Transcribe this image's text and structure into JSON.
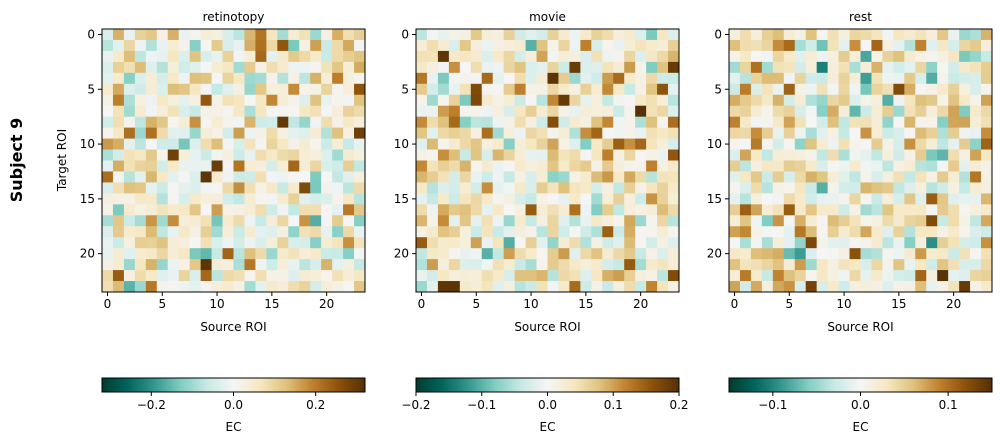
{
  "figure": {
    "row_label": "Subject 9",
    "ylabel": "Target ROI",
    "xlabel": "Source ROI",
    "colorbar_label": "EC"
  },
  "chart_data": {
    "type": "heatmap",
    "n_rois": 24,
    "axis_ticks": [
      0,
      5,
      10,
      15,
      20
    ],
    "colormap": "BrBG_r",
    "colormap_stops": [
      "#003c30",
      "#01665e",
      "#35978f",
      "#80cdc1",
      "#c7eae5",
      "#f5f5f5",
      "#f6e8c3",
      "#dfc27d",
      "#bf812d",
      "#8c510a",
      "#543005"
    ],
    "panels": [
      {
        "title": "retinotopy",
        "vlim": [
          -0.32,
          0.32
        ],
        "cbar_ticks": [
          -0.2,
          0.0,
          0.2
        ],
        "cbar_tick_labels": [
          "−0.2",
          "0.0",
          "0.2"
        ]
      },
      {
        "title": "movie",
        "vlim": [
          -0.2,
          0.2
        ],
        "cbar_ticks": [
          -0.2,
          -0.1,
          0.0,
          0.1,
          0.2
        ],
        "cbar_tick_labels": [
          "−0.2",
          "−0.1",
          "0.0",
          "0.1",
          "0.2"
        ]
      },
      {
        "title": "rest",
        "vlim": [
          -0.15,
          0.15
        ],
        "cbar_ticks": [
          -0.1,
          0.0,
          0.1
        ],
        "cbar_tick_labels": [
          "−0.1",
          "0.0",
          "0.1"
        ]
      }
    ]
  }
}
